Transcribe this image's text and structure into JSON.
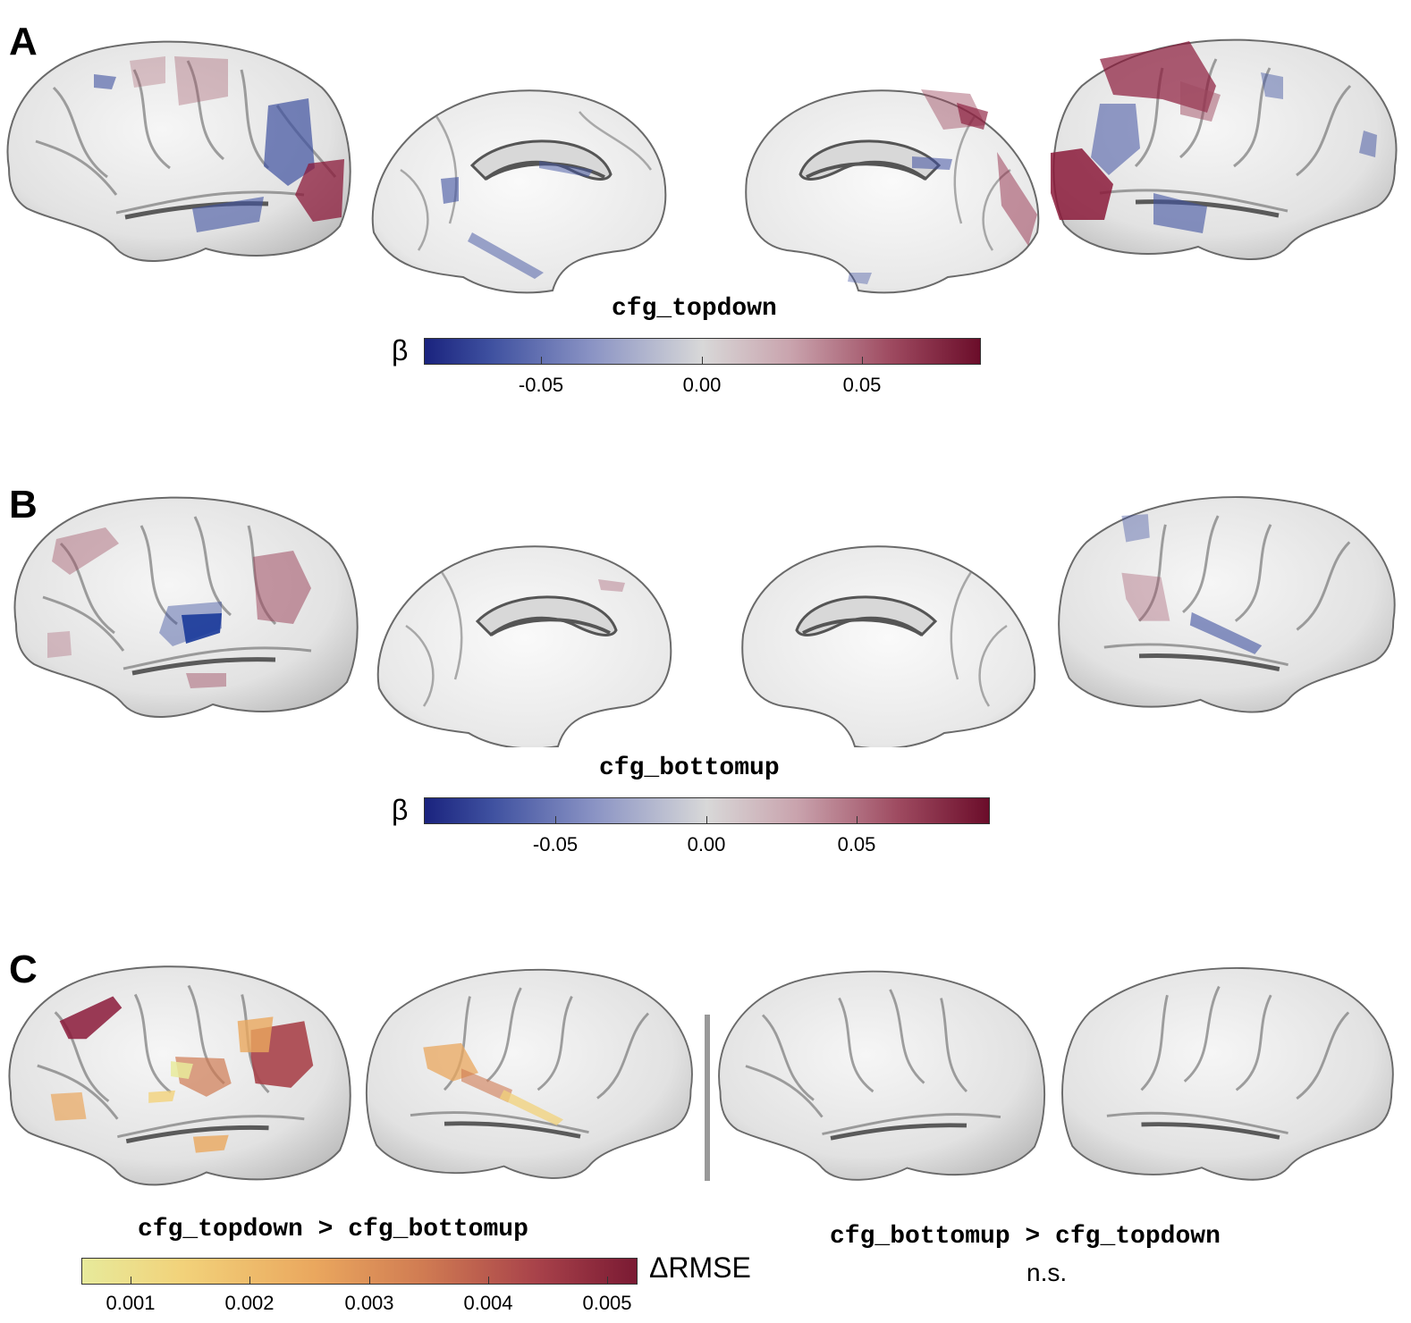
{
  "panels": {
    "a": {
      "letter": "A",
      "title": "cfg_topdown",
      "cbar_label": "β",
      "ticks": [
        "-0.05",
        "0.00",
        "0.05"
      ]
    },
    "b": {
      "letter": "B",
      "title": "cfg_bottomup",
      "cbar_label": "β",
      "ticks": [
        "-0.05",
        "0.00",
        "0.05"
      ]
    },
    "c": {
      "letter": "C",
      "left_title": "cfg_topdown > cfg_bottomup",
      "right_title": "cfg_bottomup > cfg_topdown",
      "right_note": "n.s.",
      "cbar_label": "ΔRMSE",
      "ticks": [
        "0.001",
        "0.002",
        "0.003",
        "0.004",
        "0.005"
      ]
    }
  },
  "colors": {
    "negative": "#3f51a0",
    "positive": "#8b1a3a",
    "seq_low": "#e7ea9b",
    "seq_high": "#7a1a33",
    "cortex": "#e6e6e6"
  }
}
